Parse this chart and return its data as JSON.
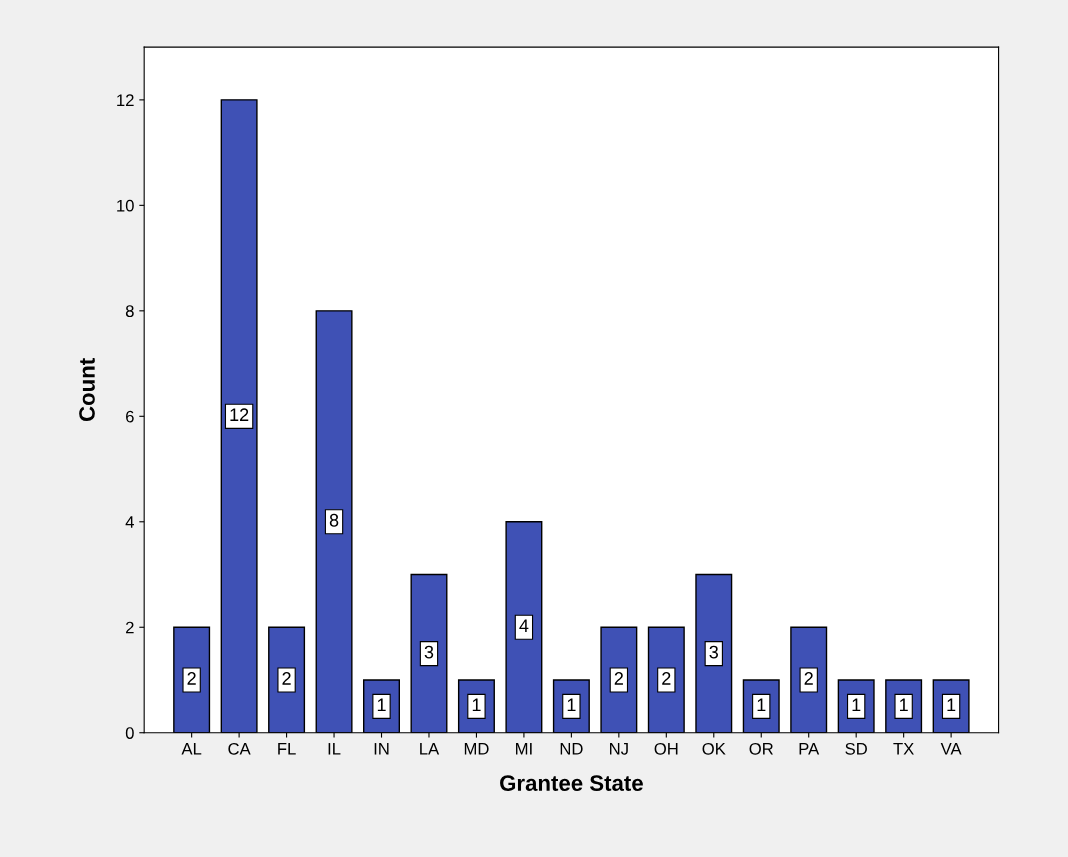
{
  "chart_data": {
    "type": "bar",
    "xlabel": "Grantee State",
    "ylabel": "Count",
    "categories": [
      "AL",
      "CA",
      "FL",
      "IL",
      "IN",
      "LA",
      "MD",
      "MI",
      "ND",
      "NJ",
      "OH",
      "OK",
      "OR",
      "PA",
      "SD",
      "TX",
      "VA"
    ],
    "values": [
      2,
      12,
      2,
      8,
      1,
      3,
      1,
      4,
      1,
      2,
      2,
      3,
      1,
      2,
      1,
      1,
      1
    ],
    "color": "#3f51b5",
    "ylim": [
      0,
      13
    ],
    "yticks": [
      0,
      2,
      4,
      6,
      8,
      10,
      12
    ],
    "grid": false,
    "data_labels": true
  }
}
